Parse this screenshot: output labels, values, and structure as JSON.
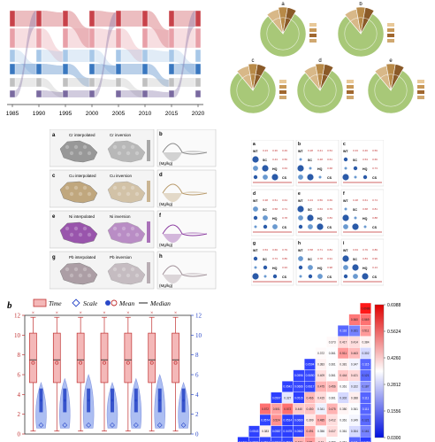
{
  "figure_grid": {
    "sankey": {
      "years": [
        "1985",
        "1990",
        "1995",
        "2000",
        "2005",
        "2010",
        "2015",
        "2020"
      ],
      "colors": {
        "red": "#c8424a",
        "blue": "#3a78c0",
        "purple": "#7a6aa0",
        "pink": "#e8a0a8",
        "lightblue": "#a8c8e8",
        "grey": "#c0c0c0"
      }
    },
    "pies": {
      "labels": [
        "a",
        "b",
        "c",
        "d",
        "e"
      ]
    },
    "maps": {
      "panels": [
        {
          "letter": "a",
          "left_title": "Cr interpolated",
          "right_title": "Cr inversion",
          "side_letter": "b",
          "unit": "(Mg/kg)",
          "color": "#888888"
        },
        {
          "letter": "c",
          "left_title": "Cu interpolated",
          "right_title": "Cu inversion",
          "side_letter": "d",
          "unit": "(Mg/kg)",
          "color": "#b89a6a"
        },
        {
          "letter": "e",
          "left_title": "Ni interpolated",
          "right_title": "Ni inversion",
          "side_letter": "f",
          "unit": "(Mg/kg)",
          "color": "#8a3aa0"
        },
        {
          "letter": "g",
          "left_title": "Pb interpolated",
          "right_title": "Pb inversion",
          "side_letter": "h",
          "unit": "(Mg/kg)",
          "color": "#a09098"
        }
      ]
    },
    "corr_grid": {
      "letters": [
        "a",
        "b",
        "c",
        "d",
        "e",
        "f",
        "g",
        "h",
        "i"
      ],
      "var_labels": [
        "WT",
        "SC",
        "HQ",
        "CS"
      ]
    },
    "boxplot": {
      "panel_label": "b",
      "legend": [
        "Time",
        "Scale",
        "Mean",
        "Median"
      ],
      "left_axis_ticks": [
        "0",
        "2",
        "4",
        "6",
        "8",
        "10",
        "12"
      ],
      "right_axis_ticks": [
        "0",
        "2",
        "4",
        "6",
        "8",
        "10",
        "12"
      ]
    },
    "heatmap": {
      "colorbar_ticks": [
        "0.6988",
        "0.5624",
        "0.4260",
        "0.2812",
        "0.1556",
        "0.0300"
      ],
      "rows": [
        [
          "0.6988"
        ],
        [
          "0.560",
          "0.569"
        ],
        [
          "0.116",
          "0.161",
          "0.511"
        ],
        [
          "0.373",
          "0.417",
          "0.414",
          "0.384"
        ],
        [
          "0.372",
          "0.361",
          "0.511",
          "0.463",
          "0.302"
        ],
        [
          "0.0594",
          "0.383",
          "0.361",
          "0.381",
          "0.347",
          "0.115"
        ],
        [
          "0.0596",
          "0.0690",
          "0.409",
          "0.361",
          "0.444",
          "0.421",
          "0.121"
        ],
        [
          "0.0542",
          "0.0666",
          "0.0617",
          "0.475",
          "0.456",
          "0.361",
          "0.322",
          "0.187"
        ],
        [
          "0.0507",
          "0.327",
          "0.0515",
          "0.466",
          "0.415",
          "0.361",
          "0.302",
          "0.388",
          "0.111"
        ],
        [
          "0.572",
          "0.501",
          "0.572",
          "0.440",
          "0.450",
          "0.341",
          "0.475",
          "0.380",
          "0.361",
          "0.111"
        ],
        [
          "0.0574",
          "0.524",
          "0.0514",
          "0.0660",
          "0.399",
          "0.485",
          "0.412",
          "0.361",
          "0.349",
          "0.121"
        ],
        [
          "0.0543",
          "0.383",
          "0.0587",
          "0.0478",
          "0.0562",
          "0.491",
          "0.356",
          "0.417",
          "0.361",
          "0.304",
          "0.161"
        ],
        [
          "0.0403",
          "0.0568",
          "0.0604",
          "0.0619",
          "0.0574",
          "0.474",
          "0.51",
          "0.42",
          "0.359",
          "0.361",
          "0.111",
          "0.0467"
        ]
      ]
    }
  }
}
